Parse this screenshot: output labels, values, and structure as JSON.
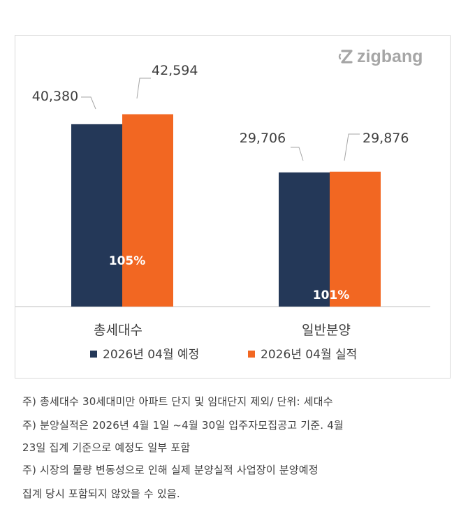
{
  "brand": {
    "name": "zigbang",
    "color": "#a6a6a6"
  },
  "chart_data": {
    "type": "bar",
    "categories": [
      "총세대수",
      "일반분양"
    ],
    "series": [
      {
        "name": "2026년 04월 예정",
        "values": [
          40380,
          29706
        ],
        "labels": [
          "40,380",
          "29,706"
        ],
        "color": "#243858"
      },
      {
        "name": "2026년 04월 실적",
        "values": [
          42594,
          29876
        ],
        "labels": [
          "42,594",
          "29,876"
        ],
        "color": "#f26722"
      }
    ],
    "ratios": [
      "105%",
      "101%"
    ],
    "legend_position": "bottom",
    "grid": false,
    "ylim": [
      0,
      48000
    ]
  },
  "footnotes": [
    "주) 총세대수 30세대미만 아파트  단지 및 임대단지 제외/ 단위: 세대수",
    "주) 분양실적은 2026년 4월 1일 ~4월 30일 입주자모집공고 기준. 4월",
    "23일 집계 기준으로 예정도 일부 포함",
    "주) 시장의 물량 변동성으로 인해 실제 분양실적 사업장이 분양예정",
    "집계 당시 포함되지 않았을 수 있음."
  ]
}
